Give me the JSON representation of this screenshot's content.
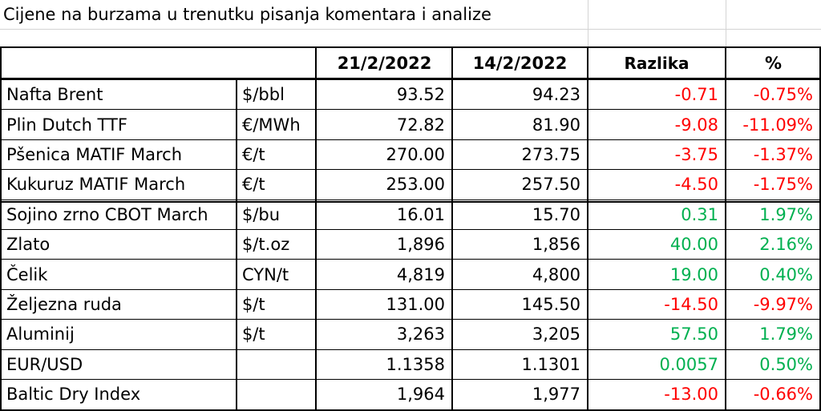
{
  "title": "Cijene na burzama u trenutku pisanja komentara i analize",
  "headers": {
    "date1": "21/2/2022",
    "date2": "14/2/2022",
    "diff": "Razlika",
    "pct": "%"
  },
  "rows": [
    {
      "name": "Nafta Brent",
      "unit": "$/bbl",
      "v1": "93.52",
      "v2": "94.23",
      "diff": "-0.71",
      "pct": "-0.75%",
      "trend": "down"
    },
    {
      "name": "Plin Dutch TTF",
      "unit": "€/MWh",
      "v1": "72.82",
      "v2": "81.90",
      "diff": "-9.08",
      "pct": "-11.09%",
      "trend": "down"
    },
    {
      "name": "Pšenica MATIF March",
      "unit": "€/t",
      "v1": "270.00",
      "v2": "273.75",
      "diff": "-3.75",
      "pct": "-1.37%",
      "trend": "down"
    },
    {
      "name": "Kukuruz MATIF March",
      "unit": "€/t",
      "v1": "253.00",
      "v2": "257.50",
      "diff": "-4.50",
      "pct": "-1.75%",
      "trend": "down"
    },
    {
      "name": "Sojino zrno CBOT March",
      "unit": "$/bu",
      "v1": "16.01",
      "v2": "15.70",
      "diff": "0.31",
      "pct": "1.97%",
      "trend": "up"
    },
    {
      "name": "Zlato",
      "unit": "$/t.oz",
      "v1": "1,896",
      "v2": "1,856",
      "diff": "40.00",
      "pct": "2.16%",
      "trend": "up"
    },
    {
      "name": "Čelik",
      "unit": "CYN/t",
      "v1": "4,819",
      "v2": "4,800",
      "diff": "19.00",
      "pct": "0.40%",
      "trend": "up"
    },
    {
      "name": "Željezna ruda",
      "unit": "$/t",
      "v1": "131.00",
      "v2": "145.50",
      "diff": "-14.50",
      "pct": "-9.97%",
      "trend": "down"
    },
    {
      "name": "Aluminij",
      "unit": "$/t",
      "v1": "3,263",
      "v2": "3,205",
      "diff": "57.50",
      "pct": "1.79%",
      "trend": "up"
    },
    {
      "name": "EUR/USD",
      "unit": "",
      "v1": "1.1358",
      "v2": "1.1301",
      "diff": "0.0057",
      "pct": "0.50%",
      "trend": "up"
    },
    {
      "name": "Baltic Dry Index",
      "unit": "",
      "v1": "1,964",
      "v2": "1,977",
      "diff": "-13.00",
      "pct": "-0.66%",
      "trend": "down"
    }
  ],
  "colors": {
    "negative": "#ff0000",
    "positive": "#00b050",
    "gridline": "#d4d4d4",
    "border": "#000000"
  }
}
